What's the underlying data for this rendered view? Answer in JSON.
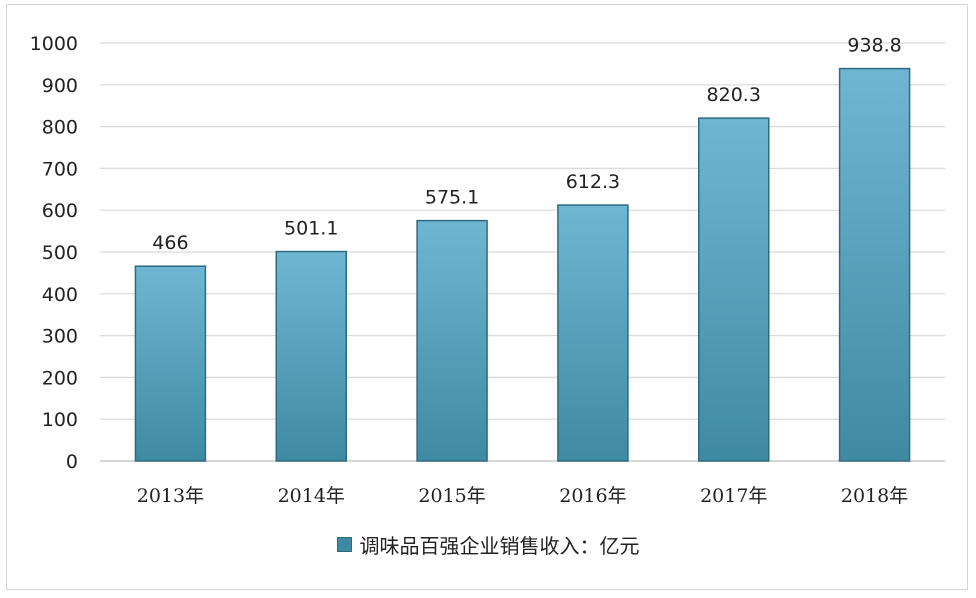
{
  "chart_data": {
    "type": "bar",
    "categories": [
      "2013年",
      "2014年",
      "2015年",
      "2016年",
      "2017年",
      "2018年"
    ],
    "series": [
      {
        "name": "调味品百强企业销售收入：亿元",
        "values": [
          466,
          501.1,
          575.1,
          612.3,
          820.3,
          938.8
        ]
      }
    ],
    "data_labels": [
      "466",
      "501.1",
      "575.1",
      "612.3",
      "820.3",
      "938.8"
    ],
    "ylim": [
      0,
      1000
    ],
    "yticks": [
      0,
      100,
      200,
      300,
      400,
      500,
      600,
      700,
      800,
      900,
      1000
    ],
    "grid": true,
    "legend_position": "bottom",
    "bar_color_top": "#6fb6d2",
    "bar_color_bottom": "#3f8aa3",
    "bar_border": "#2f6b80",
    "grid_color": "#d9d9d9"
  }
}
